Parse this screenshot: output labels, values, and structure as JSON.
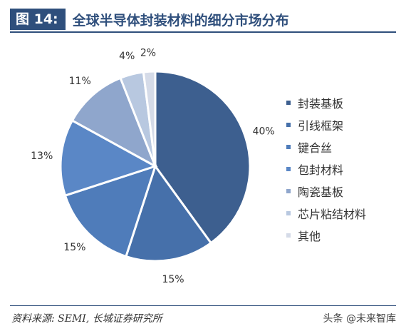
{
  "header": {
    "figure_no": "图 14:",
    "title": "全球半导体封装材料的细分市场分布"
  },
  "chart_data": {
    "type": "pie",
    "title": "全球半导体封装材料的细分市场分布",
    "labels": [
      "封装基板",
      "引线框架",
      "键合丝",
      "包封材料",
      "陶瓷基板",
      "芯片粘结材料",
      "其他"
    ],
    "values": [
      40,
      15,
      15,
      13,
      11,
      4,
      2
    ],
    "value_labels": [
      "40%",
      "15%",
      "15%",
      "13%",
      "11%",
      "4%",
      "2%"
    ],
    "colors": [
      "#3d5f8f",
      "#4670aa",
      "#4f7cba",
      "#5a87c6",
      "#8fa6cc",
      "#b8c8e0",
      "#d5dbe8"
    ],
    "legend_position": "right",
    "start_angle": "top",
    "direction": "clockwise"
  },
  "footer": {
    "source": "资料来源: SEMI, 长城证券研究所",
    "watermark": "头条 @未来智库"
  }
}
